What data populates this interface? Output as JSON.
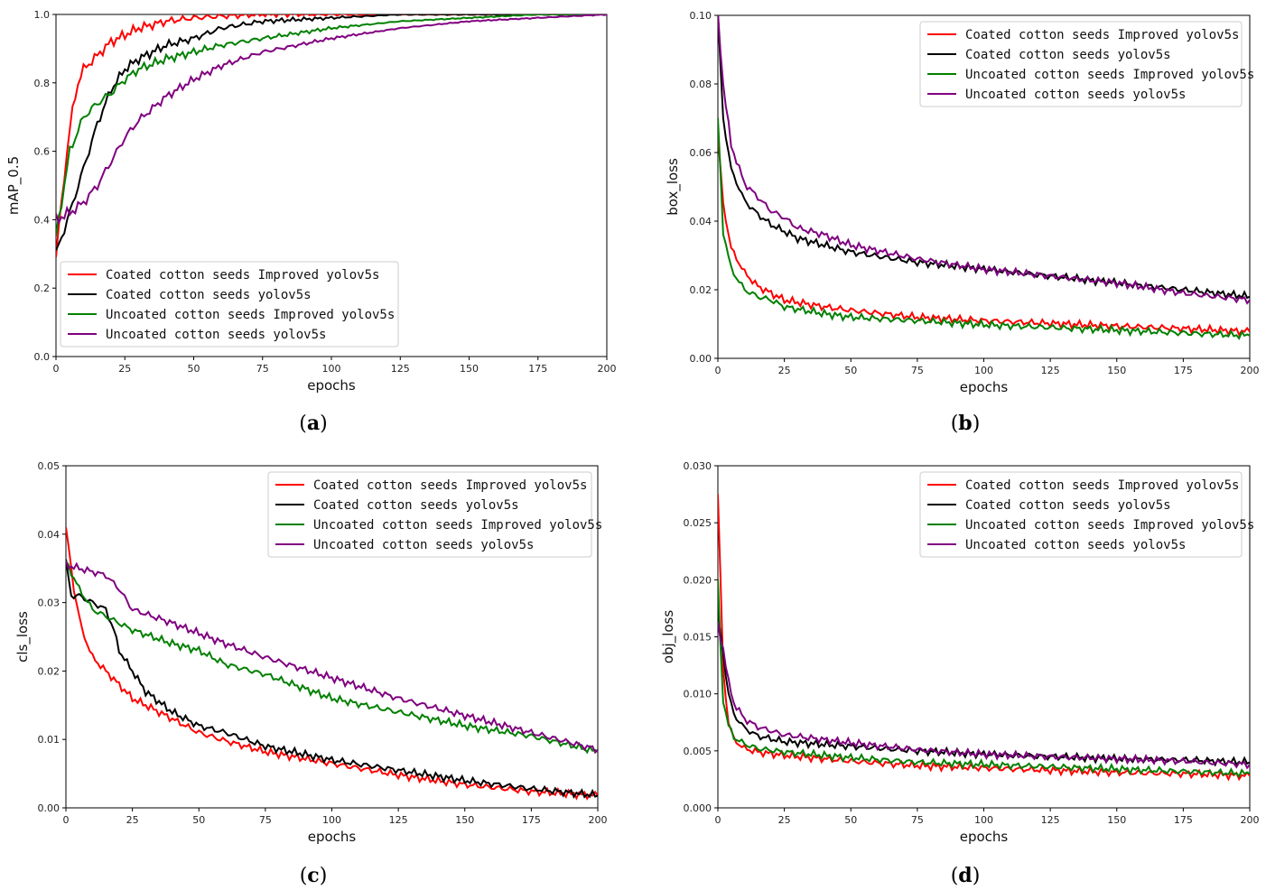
{
  "series_names": [
    "Coated cotton seeds Improved yolov5s",
    "Coated cotton seeds yolov5s",
    "Uncoated cotton seeds Improved yolov5s",
    "Uncoated cotton seeds yolov5s"
  ],
  "series_colors": [
    "#ff0000",
    "#000000",
    "#008000",
    "#800080"
  ],
  "chart_data": [
    {
      "id": "a",
      "type": "line",
      "caption_letter": "a",
      "xlabel": "epochs",
      "ylabel": "mAP_0.5",
      "xlim": [
        0,
        200
      ],
      "ylim": [
        0,
        1.0
      ],
      "xticks": [
        "0",
        "25",
        "50",
        "75",
        "100",
        "125",
        "150",
        "175",
        "200"
      ],
      "yticks": [
        "0.0",
        "0.2",
        "0.4",
        "0.6",
        "0.8",
        "1.0"
      ],
      "legend_loc": "lower-left",
      "series": [
        {
          "name": "Coated cotton seeds Improved yolov5s",
          "x": [
            0,
            2,
            4,
            6,
            8,
            10,
            15,
            20,
            25,
            30,
            40,
            50,
            60,
            75,
            100,
            125,
            150,
            175,
            200
          ],
          "y": [
            0.29,
            0.45,
            0.6,
            0.72,
            0.8,
            0.84,
            0.88,
            0.92,
            0.94,
            0.96,
            0.98,
            0.99,
            0.995,
            1.0,
            1.0,
            1.0,
            1.0,
            1.0,
            1.0
          ]
        },
        {
          "name": "Coated cotton seeds yolov5s",
          "x": [
            0,
            5,
            10,
            15,
            20,
            25,
            30,
            40,
            50,
            60,
            75,
            100,
            125,
            150,
            175,
            200
          ],
          "y": [
            0.3,
            0.42,
            0.55,
            0.68,
            0.78,
            0.84,
            0.87,
            0.91,
            0.93,
            0.96,
            0.98,
            0.99,
            1.0,
            1.0,
            1.0,
            1.0
          ]
        },
        {
          "name": "Uncoated cotton seeds Improved yolov5s",
          "x": [
            0,
            5,
            10,
            15,
            20,
            25,
            30,
            40,
            50,
            60,
            75,
            100,
            125,
            150,
            175,
            200
          ],
          "y": [
            0.35,
            0.6,
            0.7,
            0.74,
            0.77,
            0.81,
            0.84,
            0.87,
            0.89,
            0.91,
            0.93,
            0.96,
            0.98,
            0.99,
            1.0,
            1.0
          ]
        },
        {
          "name": "Uncoated cotton seeds yolov5s",
          "x": [
            0,
            5,
            10,
            15,
            20,
            25,
            30,
            40,
            50,
            60,
            75,
            100,
            125,
            150,
            175,
            200
          ],
          "y": [
            0.4,
            0.42,
            0.45,
            0.5,
            0.57,
            0.64,
            0.69,
            0.76,
            0.81,
            0.85,
            0.89,
            0.93,
            0.96,
            0.98,
            0.99,
            1.0
          ]
        }
      ]
    },
    {
      "id": "b",
      "type": "line",
      "caption_letter": "b",
      "xlabel": "epochs",
      "ylabel": "box_loss",
      "xlim": [
        0,
        200
      ],
      "ylim": [
        0,
        0.1
      ],
      "xticks": [
        "0",
        "25",
        "50",
        "75",
        "100",
        "125",
        "150",
        "175",
        "200"
      ],
      "yticks": [
        "0.00",
        "0.02",
        "0.04",
        "0.06",
        "0.08",
        "0.10"
      ],
      "legend_loc": "upper-right",
      "series": [
        {
          "name": "Coated cotton seeds Improved yolov5s",
          "x": [
            0,
            2,
            5,
            10,
            15,
            20,
            25,
            40,
            50,
            75,
            100,
            125,
            150,
            175,
            200
          ],
          "y": [
            0.065,
            0.045,
            0.032,
            0.025,
            0.021,
            0.019,
            0.017,
            0.015,
            0.014,
            0.012,
            0.011,
            0.0102,
            0.0094,
            0.0087,
            0.0078
          ]
        },
        {
          "name": "Coated cotton seeds yolov5s",
          "x": [
            0,
            2,
            5,
            10,
            15,
            20,
            25,
            30,
            40,
            50,
            75,
            100,
            125,
            150,
            175,
            200
          ],
          "y": [
            0.1,
            0.07,
            0.055,
            0.046,
            0.042,
            0.039,
            0.037,
            0.035,
            0.033,
            0.031,
            0.028,
            0.026,
            0.024,
            0.022,
            0.02,
            0.018
          ]
        },
        {
          "name": "Uncoated cotton seeds Improved yolov5s",
          "x": [
            0,
            2,
            5,
            10,
            15,
            20,
            25,
            40,
            50,
            75,
            100,
            125,
            150,
            175,
            200
          ],
          "y": [
            0.07,
            0.037,
            0.026,
            0.02,
            0.018,
            0.017,
            0.015,
            0.013,
            0.012,
            0.011,
            0.0098,
            0.009,
            0.0082,
            0.0074,
            0.0066
          ]
        },
        {
          "name": "Uncoated cotton seeds yolov5s",
          "x": [
            0,
            2,
            5,
            10,
            15,
            20,
            25,
            30,
            40,
            50,
            75,
            100,
            125,
            150,
            175,
            200
          ],
          "y": [
            0.1,
            0.08,
            0.062,
            0.051,
            0.047,
            0.043,
            0.041,
            0.038,
            0.036,
            0.033,
            0.029,
            0.026,
            0.024,
            0.022,
            0.019,
            0.017
          ]
        }
      ]
    },
    {
      "id": "c",
      "type": "line",
      "caption_letter": "c",
      "xlabel": "epochs",
      "ylabel": "cls_loss",
      "xlim": [
        0,
        200
      ],
      "ylim": [
        0,
        0.05
      ],
      "xticks": [
        "0",
        "25",
        "50",
        "75",
        "100",
        "125",
        "150",
        "175",
        "200"
      ],
      "yticks": [
        "0.00",
        "0.01",
        "0.02",
        "0.03",
        "0.04",
        "0.05"
      ],
      "legend_loc": "upper-right",
      "series": [
        {
          "name": "Coated cotton seeds Improved yolov5s",
          "x": [
            0,
            3,
            6,
            10,
            15,
            20,
            25,
            30,
            40,
            50,
            60,
            75,
            100,
            125,
            150,
            175,
            200
          ],
          "y": [
            0.041,
            0.032,
            0.026,
            0.022,
            0.02,
            0.018,
            0.016,
            0.015,
            0.013,
            0.011,
            0.0098,
            0.0082,
            0.0065,
            0.0048,
            0.0034,
            0.0024,
            0.0018
          ]
        },
        {
          "name": "Coated cotton seeds yolov5s",
          "x": [
            0,
            2,
            5,
            10,
            15,
            18,
            20,
            25,
            30,
            40,
            50,
            60,
            75,
            100,
            125,
            150,
            175,
            200
          ],
          "y": [
            0.036,
            0.031,
            0.031,
            0.03,
            0.029,
            0.026,
            0.023,
            0.02,
            0.017,
            0.014,
            0.012,
            0.011,
            0.009,
            0.007,
            0.0055,
            0.004,
            0.0028,
            0.0018
          ]
        },
        {
          "name": "Uncoated cotton seeds Improved yolov5s",
          "x": [
            0,
            5,
            10,
            15,
            25,
            40,
            50,
            60,
            75,
            100,
            125,
            150,
            175,
            200
          ],
          "y": [
            0.036,
            0.032,
            0.029,
            0.028,
            0.026,
            0.024,
            0.023,
            0.021,
            0.0195,
            0.016,
            0.014,
            0.012,
            0.0105,
            0.0082
          ]
        },
        {
          "name": "Uncoated cotton seeds yolov5s",
          "x": [
            0,
            5,
            10,
            15,
            20,
            25,
            40,
            50,
            60,
            75,
            100,
            125,
            150,
            175,
            200
          ],
          "y": [
            0.0355,
            0.035,
            0.0345,
            0.034,
            0.032,
            0.029,
            0.027,
            0.0255,
            0.024,
            0.022,
            0.019,
            0.016,
            0.0135,
            0.011,
            0.0085
          ]
        }
      ]
    },
    {
      "id": "d",
      "type": "line",
      "caption_letter": "d",
      "xlabel": "epochs",
      "ylabel": "obj_loss",
      "xlim": [
        0,
        200
      ],
      "ylim": [
        0,
        0.03
      ],
      "xticks": [
        "0",
        "25",
        "50",
        "75",
        "100",
        "125",
        "150",
        "175",
        "200"
      ],
      "yticks": [
        "0.000",
        "0.005",
        "0.010",
        "0.015",
        "0.020",
        "0.025",
        "0.030"
      ],
      "legend_loc": "upper-right",
      "series": [
        {
          "name": "Coated cotton seeds Improved yolov5s",
          "x": [
            0,
            1,
            2,
            4,
            6,
            10,
            15,
            25,
            50,
            75,
            100,
            125,
            150,
            175,
            200
          ],
          "y": [
            0.0275,
            0.02,
            0.012,
            0.0075,
            0.006,
            0.0052,
            0.0049,
            0.0046,
            0.0041,
            0.0037,
            0.0035,
            0.0033,
            0.0031,
            0.003,
            0.0028
          ]
        },
        {
          "name": "Coated cotton seeds yolov5s",
          "x": [
            0,
            2,
            4,
            6,
            10,
            15,
            25,
            50,
            75,
            100,
            125,
            150,
            175,
            200
          ],
          "y": [
            0.017,
            0.0135,
            0.01,
            0.0082,
            0.007,
            0.0063,
            0.0058,
            0.0054,
            0.005,
            0.0047,
            0.0045,
            0.0043,
            0.0042,
            0.004
          ]
        },
        {
          "name": "Uncoated cotton seeds Improved yolov5s",
          "x": [
            0,
            1,
            2,
            4,
            6,
            10,
            15,
            25,
            50,
            75,
            100,
            125,
            150,
            175,
            200
          ],
          "y": [
            0.02,
            0.014,
            0.0095,
            0.0072,
            0.0062,
            0.0056,
            0.0052,
            0.0049,
            0.0044,
            0.004,
            0.0038,
            0.0036,
            0.0034,
            0.0032,
            0.003
          ]
        },
        {
          "name": "Uncoated cotton seeds yolov5s",
          "x": [
            0,
            2,
            4,
            6,
            10,
            15,
            25,
            50,
            75,
            100,
            125,
            150,
            175,
            200
          ],
          "y": [
            0.016,
            0.014,
            0.011,
            0.0092,
            0.0078,
            0.0071,
            0.0064,
            0.0057,
            0.0051,
            0.0047,
            0.0045,
            0.0043,
            0.0041,
            0.0038
          ]
        }
      ]
    }
  ]
}
